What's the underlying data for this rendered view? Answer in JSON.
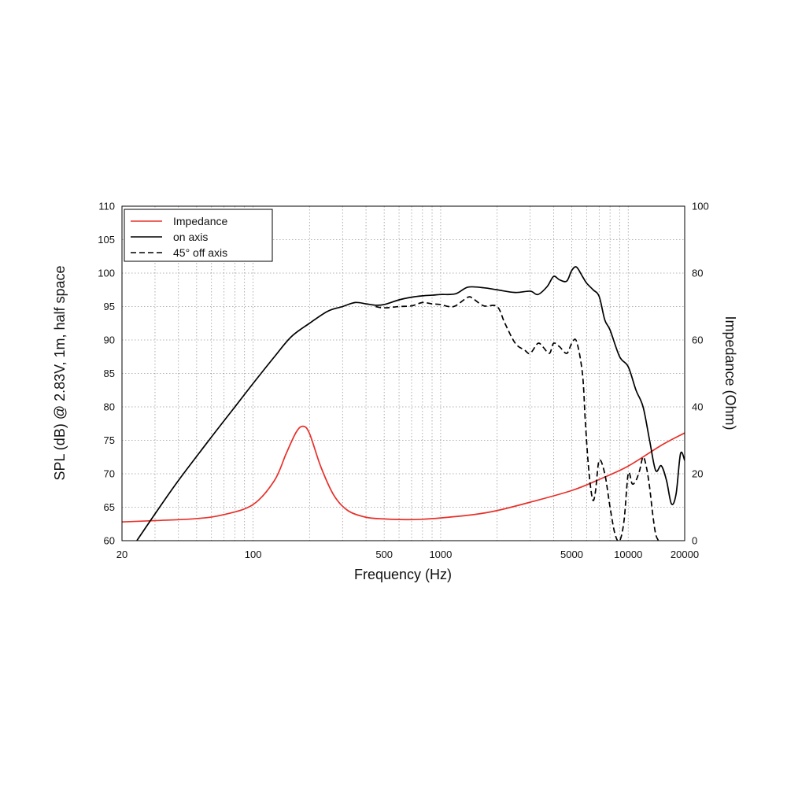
{
  "chart_data": {
    "type": "line",
    "xlabel": "Frequency (Hz)",
    "ylabel_left": "SPL (dB) @ 2.83V, 1m, half space",
    "ylabel_right": "Impedance (Ohm)",
    "x_scale": "log",
    "xlim": [
      20,
      20000
    ],
    "ylim_left": [
      60,
      110
    ],
    "ylim_right": [
      0,
      100
    ],
    "x_ticks": [
      "20",
      "100",
      "500",
      "1000",
      "5000",
      "10000",
      "20000"
    ],
    "y_ticks_left": [
      "60",
      "65",
      "70",
      "75",
      "80",
      "85",
      "90",
      "95",
      "100",
      "105",
      "110"
    ],
    "y_ticks_right": [
      "0",
      "20",
      "40",
      "60",
      "80",
      "100"
    ],
    "grid": true,
    "legend_position": "top-left",
    "series": [
      {
        "name": "Impedance",
        "axis": "right",
        "color": "#e8302a",
        "style": "solid",
        "x": [
          20,
          30,
          50,
          70,
          100,
          130,
          150,
          170,
          185,
          200,
          230,
          270,
          320,
          400,
          500,
          650,
          800,
          1000,
          1500,
          2000,
          3000,
          5000,
          7000,
          10000,
          15000,
          20000
        ],
        "y": [
          5.6,
          6.0,
          6.6,
          7.8,
          10.8,
          18,
          26,
          32.5,
          34.2,
          32,
          22,
          13.5,
          9.0,
          7.0,
          6.5,
          6.3,
          6.4,
          6.8,
          7.8,
          9,
          11.5,
          15,
          18.3,
          22.3,
          28.5,
          32.2
        ]
      },
      {
        "name": "on axis",
        "axis": "left",
        "color": "#000000",
        "style": "solid",
        "x": [
          24,
          30,
          40,
          60,
          80,
          100,
          130,
          160,
          200,
          250,
          300,
          350,
          400,
          450,
          500,
          600,
          700,
          800,
          900,
          1000,
          1200,
          1400,
          1700,
          2000,
          2500,
          3000,
          3300,
          3700,
          4000,
          4300,
          4700,
          5000,
          5300,
          5700,
          6000,
          6500,
          7000,
          7500,
          8000,
          9000,
          10000,
          11000,
          12000,
          13000,
          14000,
          15000,
          16000,
          17000,
          18000,
          19000,
          20000
        ],
        "y": [
          60,
          64,
          69,
          75.5,
          80,
          83.5,
          87.5,
          90.5,
          92.5,
          94.3,
          95,
          95.6,
          95.4,
          95.2,
          95.3,
          96.0,
          96.4,
          96.6,
          96.7,
          96.8,
          96.9,
          97.9,
          97.8,
          97.5,
          97.1,
          97.3,
          96.8,
          98.0,
          99.5,
          99.0,
          98.8,
          100.4,
          100.9,
          99.5,
          98.5,
          97.5,
          96.5,
          93.0,
          91.5,
          87.5,
          86.0,
          82.5,
          80.0,
          75.0,
          70.5,
          71.2,
          69.0,
          65.5,
          67.0,
          73.0,
          72.0
        ]
      },
      {
        "name": "45° off axis",
        "axis": "left",
        "color": "#000000",
        "style": "dashed",
        "x": [
          450,
          500,
          600,
          700,
          800,
          900,
          1000,
          1100,
          1200,
          1400,
          1500,
          1700,
          2000,
          2200,
          2500,
          2800,
          3000,
          3300,
          3500,
          3800,
          4000,
          4300,
          4700,
          5000,
          5300,
          5700,
          5900,
          6100,
          6300,
          6500,
          6700,
          7000,
          7500,
          8000,
          8500,
          9000,
          9500,
          10000,
          10500,
          11000,
          11500,
          12000,
          12500,
          13000,
          13500,
          14000,
          14500
        ],
        "y": [
          95.0,
          94.8,
          95.0,
          95.1,
          95.6,
          95.4,
          95.3,
          95.0,
          95.1,
          96.4,
          96.1,
          95.1,
          95.0,
          92.5,
          89.5,
          88.5,
          88.0,
          89.5,
          89.0,
          88.0,
          89.5,
          89.0,
          88.0,
          89.5,
          89.8,
          85.0,
          78.0,
          72.0,
          68.0,
          66.0,
          67.5,
          72.0,
          70.0,
          65.0,
          61.0,
          60.0,
          63.0,
          70.0,
          68.5,
          69.0,
          70.5,
          72.5,
          71.0,
          68.0,
          64.0,
          61.0,
          60.0
        ]
      }
    ]
  }
}
